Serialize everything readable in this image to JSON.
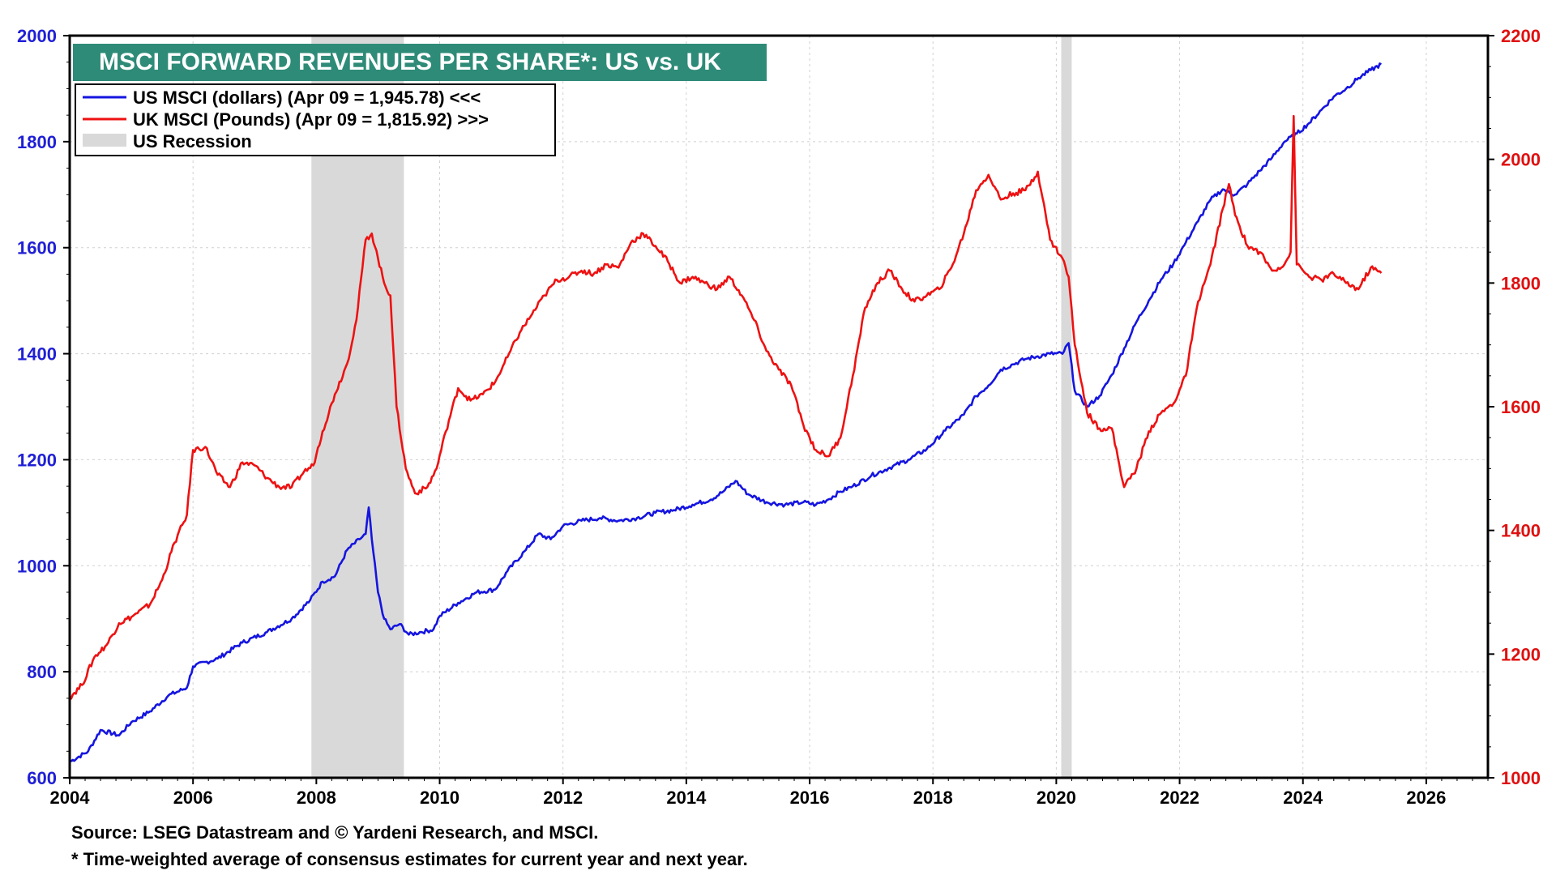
{
  "chart_data": {
    "type": "line",
    "title": "MSCI FORWARD REVENUES PER SHARE*: US vs. UK",
    "x_range": [
      2004,
      2027
    ],
    "x_ticks": [
      "2004",
      "2006",
      "2008",
      "2010",
      "2012",
      "2014",
      "2016",
      "2018",
      "2020",
      "2022",
      "2024",
      "2026"
    ],
    "x_tick_values": [
      2004,
      2006,
      2008,
      2010,
      2012,
      2014,
      2016,
      2018,
      2020,
      2022,
      2024,
      2026
    ],
    "left_axis": {
      "range": [
        600,
        2000
      ],
      "ticks": [
        "600",
        "800",
        "1000",
        "1200",
        "1400",
        "1600",
        "1800",
        "2000"
      ],
      "tick_values": [
        600,
        800,
        1000,
        1200,
        1400,
        1600,
        1800,
        2000
      ]
    },
    "right_axis": {
      "range": [
        1000,
        2200
      ],
      "ticks": [
        "1000",
        "1200",
        "1400",
        "1600",
        "1800",
        "2000",
        "2200"
      ],
      "tick_values": [
        1000,
        1200,
        1400,
        1600,
        1800,
        2000,
        2200
      ]
    },
    "grid": true,
    "legend_position": "top-left",
    "legend": [
      "US MSCI (dollars) (Apr 09 = 1,945.78) <<<",
      "UK MSCI (Pounds) (Apr 09 = 1,815.92) >>>",
      "US Recession"
    ],
    "recessions": [
      {
        "start": 2007.92,
        "end": 2009.42
      },
      {
        "start": 2020.08,
        "end": 2020.25
      }
    ],
    "series": [
      {
        "name": "US MSCI (dollars)",
        "axis": "left",
        "color": "#1515e0",
        "points": [
          [
            2004.0,
            630
          ],
          [
            2004.3,
            650
          ],
          [
            2004.5,
            690
          ],
          [
            2004.8,
            680
          ],
          [
            2005.0,
            705
          ],
          [
            2005.3,
            725
          ],
          [
            2005.6,
            755
          ],
          [
            2005.9,
            770
          ],
          [
            2006.0,
            810
          ],
          [
            2006.4,
            825
          ],
          [
            2006.8,
            855
          ],
          [
            2007.2,
            875
          ],
          [
            2007.6,
            900
          ],
          [
            2007.9,
            935
          ],
          [
            2008.1,
            970
          ],
          [
            2008.3,
            980
          ],
          [
            2008.5,
            1030
          ],
          [
            2008.7,
            1050
          ],
          [
            2008.8,
            1060
          ],
          [
            2008.85,
            1110
          ],
          [
            2008.9,
            1050
          ],
          [
            2009.0,
            950
          ],
          [
            2009.1,
            900
          ],
          [
            2009.2,
            880
          ],
          [
            2009.35,
            890
          ],
          [
            2009.5,
            870
          ],
          [
            2009.7,
            875
          ],
          [
            2009.9,
            880
          ],
          [
            2010.0,
            905
          ],
          [
            2010.3,
            930
          ],
          [
            2010.6,
            950
          ],
          [
            2010.9,
            955
          ],
          [
            2011.1,
            990
          ],
          [
            2011.4,
            1030
          ],
          [
            2011.6,
            1060
          ],
          [
            2011.8,
            1050
          ],
          [
            2012.0,
            1075
          ],
          [
            2012.3,
            1085
          ],
          [
            2012.6,
            1090
          ],
          [
            2012.9,
            1085
          ],
          [
            2013.2,
            1090
          ],
          [
            2013.5,
            1100
          ],
          [
            2013.8,
            1105
          ],
          [
            2014.1,
            1115
          ],
          [
            2014.4,
            1125
          ],
          [
            2014.6,
            1140
          ],
          [
            2014.8,
            1160
          ],
          [
            2015.0,
            1135
          ],
          [
            2015.3,
            1120
          ],
          [
            2015.6,
            1115
          ],
          [
            2015.9,
            1120
          ],
          [
            2016.1,
            1115
          ],
          [
            2016.3,
            1125
          ],
          [
            2016.5,
            1140
          ],
          [
            2016.7,
            1150
          ],
          [
            2017.0,
            1170
          ],
          [
            2017.3,
            1185
          ],
          [
            2017.6,
            1200
          ],
          [
            2017.9,
            1220
          ],
          [
            2018.2,
            1255
          ],
          [
            2018.5,
            1285
          ],
          [
            2018.7,
            1320
          ],
          [
            2018.9,
            1340
          ],
          [
            2019.1,
            1370
          ],
          [
            2019.3,
            1380
          ],
          [
            2019.5,
            1390
          ],
          [
            2019.7,
            1395
          ],
          [
            2019.9,
            1400
          ],
          [
            2020.1,
            1400
          ],
          [
            2020.2,
            1420
          ],
          [
            2020.3,
            1330
          ],
          [
            2020.5,
            1300
          ],
          [
            2020.7,
            1320
          ],
          [
            2020.9,
            1360
          ],
          [
            2021.1,
            1410
          ],
          [
            2021.3,
            1460
          ],
          [
            2021.5,
            1500
          ],
          [
            2021.7,
            1540
          ],
          [
            2021.9,
            1570
          ],
          [
            2022.1,
            1610
          ],
          [
            2022.3,
            1650
          ],
          [
            2022.5,
            1690
          ],
          [
            2022.7,
            1710
          ],
          [
            2022.9,
            1700
          ],
          [
            2023.1,
            1720
          ],
          [
            2023.3,
            1745
          ],
          [
            2023.5,
            1770
          ],
          [
            2023.7,
            1800
          ],
          [
            2023.9,
            1815
          ],
          [
            2024.1,
            1835
          ],
          [
            2024.3,
            1860
          ],
          [
            2024.5,
            1885
          ],
          [
            2024.7,
            1900
          ],
          [
            2024.9,
            1920
          ],
          [
            2025.1,
            1935
          ],
          [
            2025.27,
            1946
          ]
        ]
      },
      {
        "name": "UK MSCI (Pounds)",
        "axis": "right",
        "color": "#ee1111",
        "points": [
          [
            2004.0,
            1130
          ],
          [
            2004.2,
            1150
          ],
          [
            2004.4,
            1195
          ],
          [
            2004.6,
            1215
          ],
          [
            2004.8,
            1250
          ],
          [
            2005.0,
            1260
          ],
          [
            2005.3,
            1280
          ],
          [
            2005.5,
            1320
          ],
          [
            2005.7,
            1380
          ],
          [
            2005.9,
            1425
          ],
          [
            2006.0,
            1530
          ],
          [
            2006.2,
            1535
          ],
          [
            2006.4,
            1490
          ],
          [
            2006.6,
            1470
          ],
          [
            2006.8,
            1510
          ],
          [
            2007.0,
            1505
          ],
          [
            2007.2,
            1485
          ],
          [
            2007.4,
            1470
          ],
          [
            2007.6,
            1470
          ],
          [
            2007.8,
            1495
          ],
          [
            2007.95,
            1505
          ],
          [
            2008.1,
            1560
          ],
          [
            2008.3,
            1620
          ],
          [
            2008.5,
            1670
          ],
          [
            2008.65,
            1740
          ],
          [
            2008.8,
            1870
          ],
          [
            2008.9,
            1880
          ],
          [
            2009.0,
            1840
          ],
          [
            2009.1,
            1800
          ],
          [
            2009.2,
            1780
          ],
          [
            2009.3,
            1600
          ],
          [
            2009.45,
            1500
          ],
          [
            2009.6,
            1460
          ],
          [
            2009.8,
            1470
          ],
          [
            2009.95,
            1500
          ],
          [
            2010.1,
            1560
          ],
          [
            2010.3,
            1630
          ],
          [
            2010.5,
            1610
          ],
          [
            2010.7,
            1620
          ],
          [
            2010.9,
            1640
          ],
          [
            2011.1,
            1680
          ],
          [
            2011.3,
            1720
          ],
          [
            2011.5,
            1750
          ],
          [
            2011.7,
            1780
          ],
          [
            2011.9,
            1805
          ],
          [
            2012.1,
            1810
          ],
          [
            2012.3,
            1820
          ],
          [
            2012.5,
            1815
          ],
          [
            2012.7,
            1830
          ],
          [
            2012.9,
            1825
          ],
          [
            2013.1,
            1865
          ],
          [
            2013.3,
            1880
          ],
          [
            2013.5,
            1860
          ],
          [
            2013.7,
            1835
          ],
          [
            2013.9,
            1800
          ],
          [
            2014.1,
            1810
          ],
          [
            2014.3,
            1800
          ],
          [
            2014.5,
            1790
          ],
          [
            2014.7,
            1810
          ],
          [
            2014.9,
            1780
          ],
          [
            2015.1,
            1740
          ],
          [
            2015.3,
            1690
          ],
          [
            2015.5,
            1660
          ],
          [
            2015.7,
            1635
          ],
          [
            2015.9,
            1570
          ],
          [
            2016.1,
            1530
          ],
          [
            2016.3,
            1520
          ],
          [
            2016.5,
            1550
          ],
          [
            2016.7,
            1650
          ],
          [
            2016.9,
            1760
          ],
          [
            2017.1,
            1800
          ],
          [
            2017.3,
            1820
          ],
          [
            2017.5,
            1790
          ],
          [
            2017.7,
            1770
          ],
          [
            2017.9,
            1780
          ],
          [
            2018.1,
            1790
          ],
          [
            2018.3,
            1825
          ],
          [
            2018.5,
            1880
          ],
          [
            2018.7,
            1950
          ],
          [
            2018.9,
            1975
          ],
          [
            2019.1,
            1935
          ],
          [
            2019.3,
            1945
          ],
          [
            2019.5,
            1950
          ],
          [
            2019.7,
            1980
          ],
          [
            2019.9,
            1870
          ],
          [
            2020.1,
            1840
          ],
          [
            2020.2,
            1810
          ],
          [
            2020.3,
            1700
          ],
          [
            2020.5,
            1590
          ],
          [
            2020.7,
            1565
          ],
          [
            2020.9,
            1565
          ],
          [
            2021.1,
            1470
          ],
          [
            2021.3,
            1500
          ],
          [
            2021.5,
            1560
          ],
          [
            2021.7,
            1590
          ],
          [
            2021.9,
            1605
          ],
          [
            2022.1,
            1650
          ],
          [
            2022.3,
            1770
          ],
          [
            2022.5,
            1830
          ],
          [
            2022.7,
            1920
          ],
          [
            2022.8,
            1960
          ],
          [
            2022.9,
            1910
          ],
          [
            2023.1,
            1860
          ],
          [
            2023.3,
            1850
          ],
          [
            2023.5,
            1820
          ],
          [
            2023.7,
            1830
          ],
          [
            2023.8,
            1850
          ],
          [
            2023.85,
            2070
          ],
          [
            2023.9,
            1830
          ],
          [
            2024.1,
            1810
          ],
          [
            2024.3,
            1805
          ],
          [
            2024.5,
            1815
          ],
          [
            2024.7,
            1800
          ],
          [
            2024.9,
            1790
          ],
          [
            2025.1,
            1825
          ],
          [
            2025.27,
            1816
          ]
        ]
      }
    ],
    "source": "Source: LSEG Datastream and © Yardeni Research, and MSCI.",
    "footnote": "* Time-weighted average of consensus estimates for current year and next year.",
    "colors": {
      "title_bg": "#2e8b78",
      "recession": "#d9d9d9",
      "left_axis": "#1f1fd6",
      "right_axis": "#e01010"
    }
  }
}
